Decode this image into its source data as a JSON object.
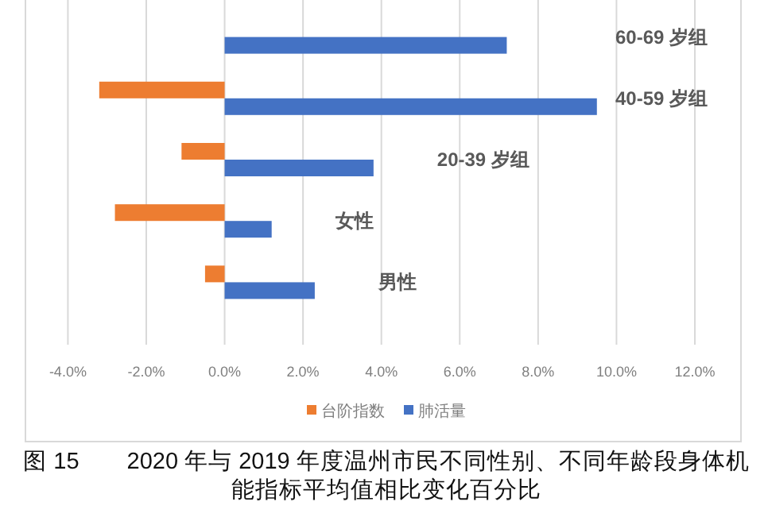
{
  "chart_data": {
    "type": "bar",
    "orientation": "horizontal",
    "title": "图 15　　2020 年与 2019 年度温州市民不同性别、不同年龄段身体机能指标平均值相比变化百分比",
    "categories": [
      "60-69 岁组",
      "40-59 岁组",
      "20-39 岁组",
      "女性",
      "男性"
    ],
    "series": [
      {
        "name": "台阶指数",
        "color": "#ed7d31",
        "values": [
          null,
          -3.2,
          -1.1,
          -2.8,
          -0.5
        ]
      },
      {
        "name": "肺活量",
        "color": "#4472c4",
        "values": [
          7.2,
          9.5,
          3.8,
          1.2,
          2.3
        ]
      }
    ],
    "xlim": [
      -4,
      12
    ],
    "xticks": [
      {
        "value": -4,
        "label": "-4.0%"
      },
      {
        "value": -2,
        "label": "-2.0%"
      },
      {
        "value": 0,
        "label": "0.0%"
      },
      {
        "value": 2,
        "label": "2.0%"
      },
      {
        "value": 4,
        "label": "4.0%"
      },
      {
        "value": 6,
        "label": "6.0%"
      },
      {
        "value": 8,
        "label": "8.0%"
      },
      {
        "value": 10,
        "label": "10.0%"
      },
      {
        "value": 12,
        "label": "12.0%"
      }
    ],
    "grid": "x",
    "legend": "bottom"
  }
}
